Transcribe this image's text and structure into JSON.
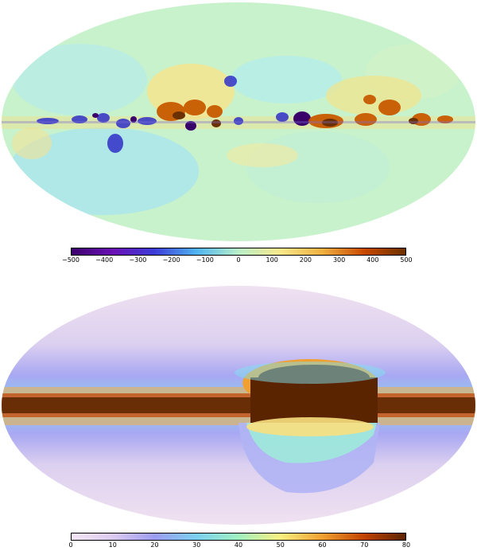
{
  "panels": [
    {
      "id": "top",
      "colormap": [
        "#3b006a",
        "#6a10b5",
        "#3c3cd8",
        "#4fb4f0",
        "#b8f0c8",
        "#f8e88a",
        "#f0b040",
        "#c84800",
        "#6a3000"
      ],
      "colorbar_ticks": [
        "−500",
        "−400",
        "−300",
        "−200",
        "−100",
        "0",
        "100",
        "200",
        "300",
        "400",
        "500"
      ]
    },
    {
      "id": "bottom",
      "colormap": [
        "#f4e6f4",
        "#dccaf0",
        "#9c9cf0",
        "#7cd0f0",
        "#a0f0c0",
        "#f8f080",
        "#f0a030",
        "#c04000",
        "#5a2400"
      ],
      "colorbar_ticks": [
        "0",
        "10",
        "20",
        "30",
        "40",
        "50",
        "60",
        "70",
        "80"
      ]
    }
  ]
}
